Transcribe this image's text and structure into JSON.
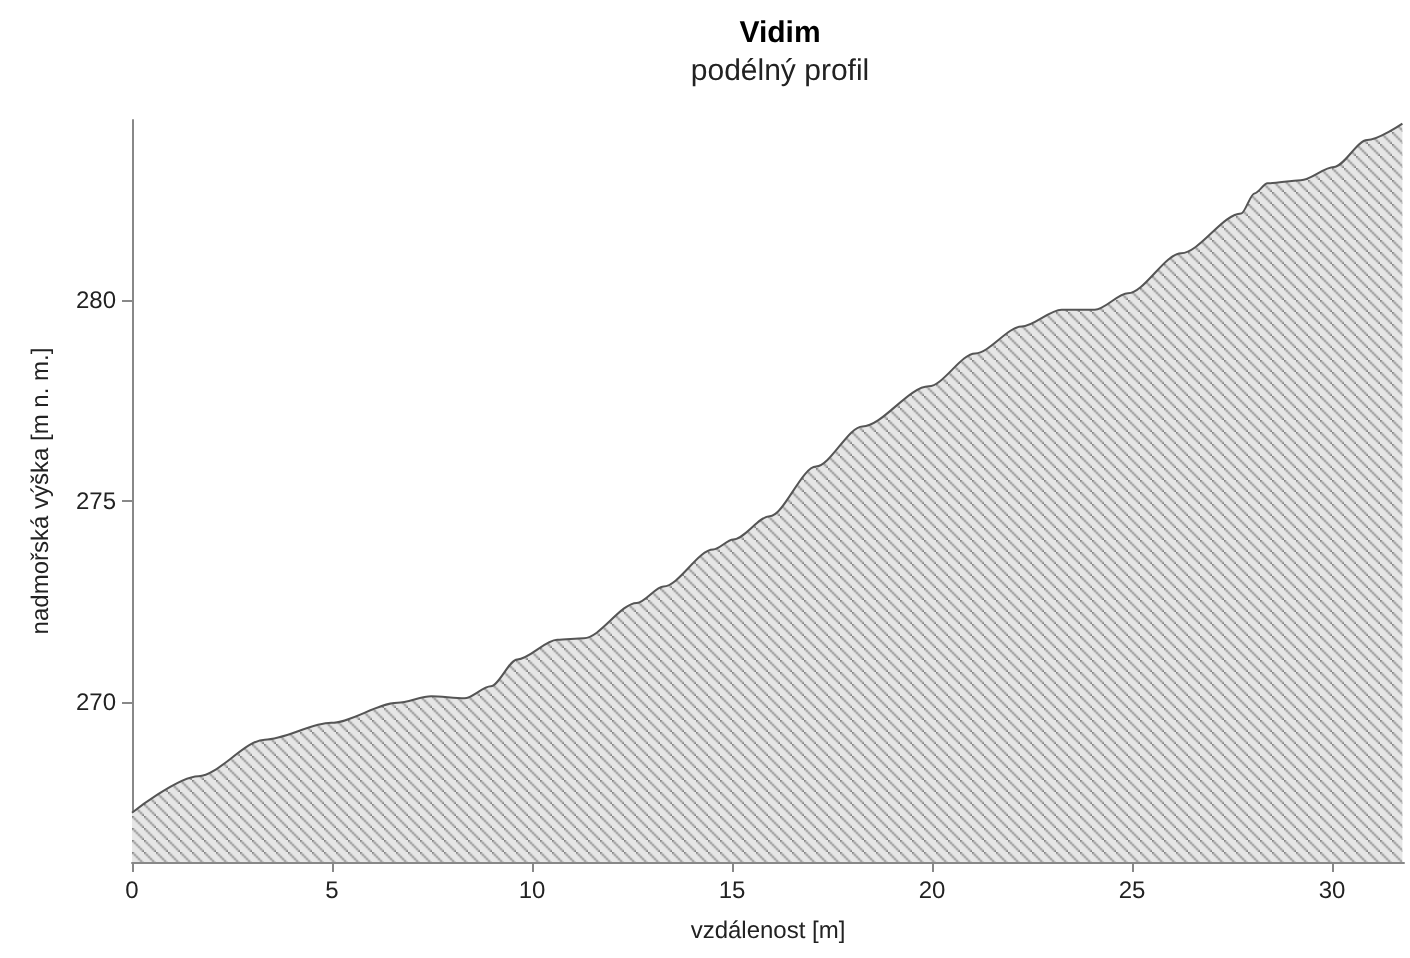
{
  "chart_data": {
    "type": "area",
    "title": "Vidim",
    "subtitle": "podélný profil",
    "xlabel": "vzdálenost [m]",
    "ylabel": "nadmořská výška [m n. m.]",
    "x": [
      0,
      1.66,
      3.32,
      4.98,
      6.64,
      7.48,
      8.31,
      8.97,
      9.63,
      10.63,
      11.3,
      12.62,
      13.29,
      14.53,
      15.03,
      15.94,
      17.1,
      18.26,
      19.92,
      21.08,
      22.24,
      23.24,
      24.07,
      24.9,
      26.23,
      27.73,
      28.06,
      28.39,
      29.22,
      30.05,
      30.88,
      31.76
    ],
    "series": [
      {
        "color": "#555555",
        "values": [
          267.23,
          268.14,
          269.05,
          269.47,
          269.97,
          270.13,
          270.08,
          270.38,
          271.05,
          271.54,
          271.58,
          272.46,
          272.87,
          273.79,
          274.04,
          274.62,
          275.86,
          276.86,
          277.86,
          278.68,
          279.35,
          279.77,
          279.77,
          280.18,
          281.18,
          282.17,
          282.67,
          282.92,
          283.0,
          283.33,
          284.0,
          284.41
        ]
      }
    ],
    "xlim": [
      0,
      31.8
    ],
    "xticks": [
      0,
      5,
      10,
      15,
      20,
      25,
      30
    ],
    "ylim": [
      266,
      284.5
    ],
    "yticks": [
      270,
      275,
      280
    ],
    "grid": false,
    "marker": "none",
    "line_style": "solid"
  }
}
